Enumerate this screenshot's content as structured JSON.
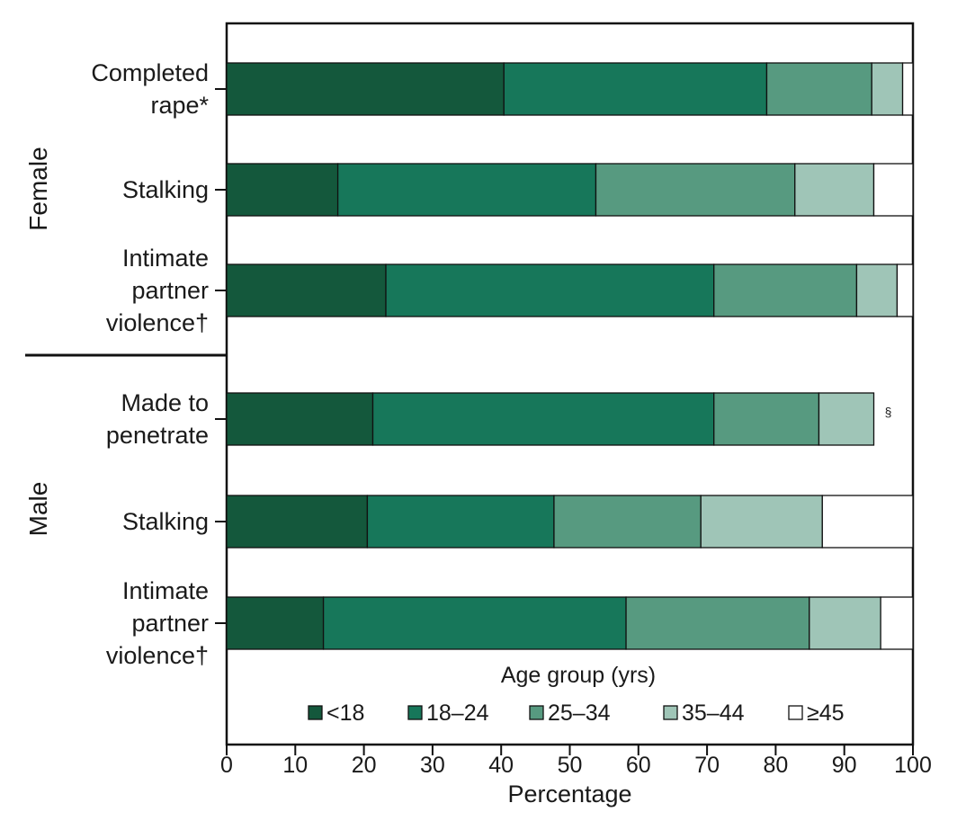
{
  "chart_data": {
    "type": "bar",
    "orientation": "horizontal",
    "stacked": true,
    "xlabel": "Percentage",
    "xlim": [
      0,
      100
    ],
    "xticks": [
      0,
      10,
      20,
      30,
      40,
      50,
      60,
      70,
      80,
      90,
      100
    ],
    "legend": {
      "title": "Age group (yrs)",
      "placement": "bottom-inside"
    },
    "groups": [
      {
        "label": "Female",
        "categories": [
          {
            "lines": [
              "Completed",
              "rape*"
            ],
            "values": [
              40.4,
              38.3,
              15.3,
              4.5,
              1.5
            ]
          },
          {
            "lines": [
              "Stalking"
            ],
            "values": [
              16.2,
              37.6,
              29.0,
              11.5,
              5.7
            ]
          },
          {
            "lines": [
              "Intimate",
              "partner",
              "violence†"
            ],
            "values": [
              23.2,
              47.8,
              20.8,
              5.9,
              2.3
            ]
          }
        ]
      },
      {
        "label": "Male",
        "categories": [
          {
            "lines": [
              "Made to",
              "penetrate"
            ],
            "values": [
              21.3,
              49.7,
              15.3,
              8.0,
              null
            ],
            "note": "§"
          },
          {
            "lines": [
              "Stalking"
            ],
            "values": [
              20.5,
              27.2,
              21.4,
              17.7,
              13.2
            ]
          },
          {
            "lines": [
              "Intimate",
              "partner",
              "violence†"
            ],
            "values": [
              14.1,
              44.1,
              26.7,
              10.4,
              4.7
            ]
          }
        ]
      }
    ],
    "series": [
      {
        "name": "<18",
        "color": "#14583c"
      },
      {
        "name": "18–24",
        "color": "#17775a"
      },
      {
        "name": "25–34",
        "color": "#579a80"
      },
      {
        "name": "35–44",
        "color": "#9fc5b7"
      },
      {
        "name": "≥45",
        "color": "#ffffff"
      }
    ]
  }
}
